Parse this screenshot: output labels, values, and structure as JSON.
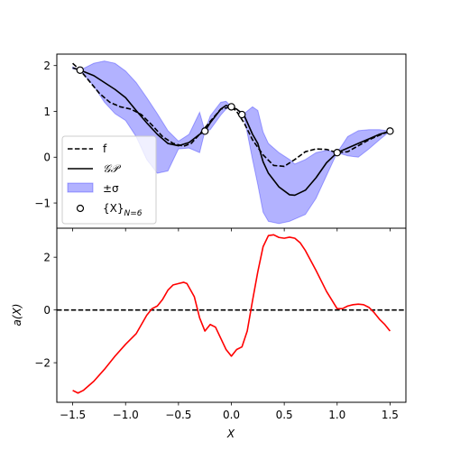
{
  "chart_data": [
    {
      "type": "line",
      "panel": "top",
      "xlim": [
        -1.65,
        1.65
      ],
      "ylim": [
        -1.55,
        2.25
      ],
      "yticks": [
        -1,
        0,
        1,
        2
      ],
      "ytick_labels": [
        "−1",
        "0",
        "1",
        "2"
      ],
      "legend_position": "lower-left",
      "legend": [
        {
          "label": "f",
          "style": "dashed",
          "color": "#000000"
        },
        {
          "label": "𝒢𝒫",
          "style": "solid",
          "color": "#000000"
        },
        {
          "label": "±σ",
          "style": "band",
          "color": "#0000ff"
        },
        {
          "label": "{X}",
          "sub": "N=6",
          "style": "marker",
          "color": "#000000"
        }
      ],
      "series": [
        {
          "name": "f",
          "style": "dashed",
          "color": "#000000",
          "x": [
            -1.5,
            -1.43,
            -1.35,
            -1.25,
            -1.15,
            -1.05,
            -0.95,
            -0.85,
            -0.75,
            -0.65,
            -0.55,
            -0.45,
            -0.38,
            -0.3,
            -0.2,
            -0.1,
            0.0,
            0.05,
            0.12,
            0.2,
            0.3,
            0.4,
            0.5,
            0.6,
            0.7,
            0.8,
            0.9,
            1.0,
            1.1,
            1.2,
            1.3,
            1.4,
            1.5
          ],
          "y": [
            2.05,
            1.9,
            1.68,
            1.4,
            1.2,
            1.1,
            1.05,
            0.93,
            0.7,
            0.45,
            0.3,
            0.24,
            0.3,
            0.5,
            0.78,
            1.05,
            1.1,
            1.0,
            0.75,
            0.38,
            0.05,
            -0.18,
            -0.2,
            -0.05,
            0.12,
            0.18,
            0.17,
            0.1,
            0.12,
            0.25,
            0.38,
            0.48,
            0.57
          ]
        },
        {
          "name": "𝒢𝒫",
          "style": "solid",
          "color": "#000000",
          "x": [
            -1.5,
            -1.43,
            -1.3,
            -1.2,
            -1.1,
            -1.0,
            -0.9,
            -0.8,
            -0.7,
            -0.6,
            -0.5,
            -0.4,
            -0.3,
            -0.25,
            -0.2,
            -0.1,
            -0.05,
            0.0,
            0.05,
            0.12,
            0.2,
            0.25,
            0.3,
            0.35,
            0.45,
            0.55,
            0.6,
            0.7,
            0.8,
            0.9,
            1.0,
            1.1,
            1.2,
            1.3,
            1.4,
            1.5
          ],
          "y": [
            1.95,
            1.9,
            1.78,
            1.63,
            1.48,
            1.3,
            1.02,
            0.75,
            0.5,
            0.3,
            0.25,
            0.32,
            0.5,
            0.57,
            0.75,
            1.05,
            1.13,
            1.1,
            1.05,
            0.92,
            0.5,
            0.3,
            -0.1,
            -0.35,
            -0.65,
            -0.82,
            -0.83,
            -0.72,
            -0.45,
            -0.12,
            0.1,
            0.2,
            0.3,
            0.4,
            0.5,
            0.57
          ]
        }
      ],
      "band": {
        "name": "±σ",
        "color": "#0000ff",
        "opacity": 0.3,
        "x": [
          -1.5,
          -1.43,
          -1.3,
          -1.2,
          -1.1,
          -1.0,
          -0.9,
          -0.8,
          -0.7,
          -0.6,
          -0.5,
          -0.4,
          -0.3,
          -0.25,
          -0.2,
          -0.1,
          -0.05,
          0.0,
          0.05,
          0.12,
          0.2,
          0.25,
          0.3,
          0.35,
          0.45,
          0.55,
          0.6,
          0.7,
          0.8,
          0.9,
          1.0,
          1.1,
          1.2,
          1.3,
          1.4,
          1.5
        ],
        "upper": [
          1.97,
          1.9,
          2.05,
          2.1,
          2.05,
          1.88,
          1.63,
          1.3,
          0.95,
          0.58,
          0.35,
          0.5,
          0.98,
          0.57,
          0.9,
          1.2,
          1.22,
          1.1,
          1.05,
          0.95,
          1.1,
          1.02,
          0.55,
          0.3,
          0.1,
          -0.05,
          -0.15,
          -0.05,
          0.1,
          0.15,
          0.1,
          0.45,
          0.58,
          0.6,
          0.6,
          0.57
        ],
        "lower": [
          1.93,
          1.9,
          1.55,
          1.2,
          0.95,
          0.8,
          0.45,
          -0.05,
          -0.35,
          -0.3,
          0.18,
          0.2,
          0.1,
          0.57,
          0.6,
          0.92,
          1.05,
          1.1,
          1.05,
          0.88,
          -0.05,
          -0.6,
          -1.2,
          -1.4,
          -1.45,
          -1.4,
          -1.35,
          -1.25,
          -0.9,
          -0.4,
          0.1,
          0.03,
          0.0,
          0.18,
          0.38,
          0.57
        ]
      },
      "points": {
        "name": "{X}",
        "x": [
          -1.43,
          -0.25,
          0.0,
          0.1,
          1.0,
          1.5
        ],
        "y": [
          1.9,
          0.57,
          1.1,
          0.93,
          0.1,
          0.57
        ]
      }
    },
    {
      "type": "line",
      "panel": "bottom",
      "xlim": [
        -1.65,
        1.65
      ],
      "ylim": [
        -3.5,
        3.1
      ],
      "xticks": [
        -1.5,
        -1.0,
        -0.5,
        0.0,
        0.5,
        1.0,
        1.5
      ],
      "xtick_labels": [
        "−1.5",
        "−1.0",
        "−0.5",
        "0.0",
        "0.5",
        "1.0",
        "1.5"
      ],
      "yticks": [
        -2,
        0,
        2
      ],
      "ytick_labels": [
        "−2",
        "0",
        "2"
      ],
      "xlabel": "X",
      "ylabel": "a(X)",
      "hline": {
        "y": 0,
        "style": "dashed",
        "color": "#000000"
      },
      "series": [
        {
          "name": "a(X)",
          "style": "solid",
          "color": "#ff0000",
          "x": [
            -1.5,
            -1.45,
            -1.4,
            -1.3,
            -1.2,
            -1.1,
            -1.0,
            -0.9,
            -0.85,
            -0.8,
            -0.75,
            -0.7,
            -0.65,
            -0.6,
            -0.55,
            -0.5,
            -0.45,
            -0.42,
            -0.35,
            -0.3,
            -0.25,
            -0.2,
            -0.15,
            -0.05,
            0.0,
            0.05,
            0.1,
            0.15,
            0.2,
            0.25,
            0.3,
            0.35,
            0.4,
            0.45,
            0.5,
            0.55,
            0.6,
            0.65,
            0.7,
            0.8,
            0.9,
            1.0,
            1.05,
            1.1,
            1.15,
            1.2,
            1.25,
            1.3,
            1.35,
            1.4,
            1.45,
            1.5
          ],
          "y": [
            -3.05,
            -3.15,
            -3.05,
            -2.7,
            -2.25,
            -1.75,
            -1.3,
            -0.9,
            -0.55,
            -0.2,
            0.05,
            0.15,
            0.4,
            0.75,
            0.95,
            1.0,
            1.05,
            1.0,
            0.5,
            -0.3,
            -0.8,
            -0.55,
            -0.65,
            -1.5,
            -1.75,
            -1.5,
            -1.4,
            -0.8,
            0.35,
            1.45,
            2.4,
            2.82,
            2.85,
            2.75,
            2.72,
            2.76,
            2.72,
            2.55,
            2.25,
            1.5,
            0.7,
            0.05,
            0.05,
            0.15,
            0.2,
            0.22,
            0.2,
            0.1,
            -0.1,
            -0.35,
            -0.55,
            -0.8
          ]
        }
      ]
    }
  ]
}
